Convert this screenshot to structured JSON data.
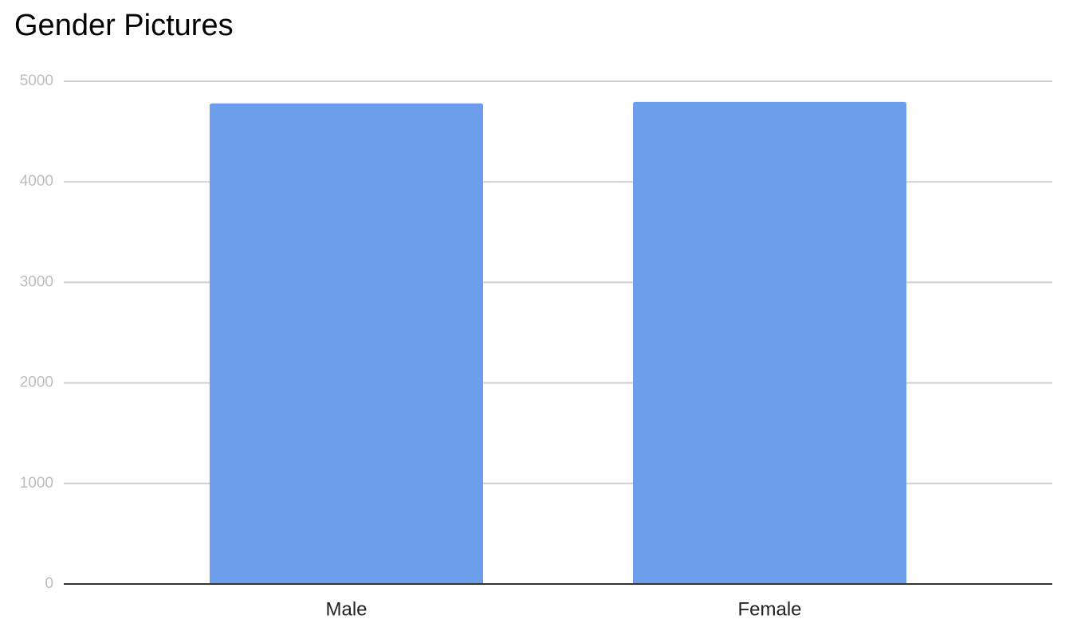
{
  "chart_data": {
    "type": "bar",
    "title": "Gender Pictures",
    "categories": [
      "Male",
      "Female"
    ],
    "values": [
      4780,
      4795
    ],
    "color": "#6d9eeb",
    "ylim": [
      0,
      5000
    ],
    "yticks": [
      0,
      1000,
      2000,
      3000,
      4000,
      5000
    ],
    "grid": true
  }
}
